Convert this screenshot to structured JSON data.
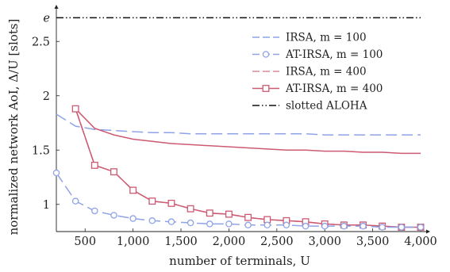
{
  "chart_data": {
    "type": "line",
    "xlabel": "number of terminals, U",
    "ylabel": "normalized network AoI, Δ/U [slots]",
    "xlim": [
      200,
      4000
    ],
    "ylim": [
      0.75,
      2.75
    ],
    "x_ticks": [
      500,
      1000,
      1500,
      2000,
      2500,
      3000,
      3500,
      4000
    ],
    "x_tick_labels": [
      "500",
      "1,000",
      "1,500",
      "2,000",
      "2,500",
      "3,000",
      "3,500",
      "4,000"
    ],
    "y_ticks": [
      1,
      1.5,
      2,
      2.5,
      2.718
    ],
    "y_tick_labels": [
      "1",
      "1.5",
      "2",
      "2.5",
      "e"
    ],
    "grid": false,
    "legend_position": "right",
    "series": [
      {
        "name": "IRSA, m = 100",
        "color": "#8fa3e6",
        "style": "dashed",
        "marker": "none",
        "x": [
          200,
          400,
          600,
          800,
          1000,
          1200,
          1400,
          1600,
          1800,
          2000,
          2200,
          2400,
          2600,
          2800,
          3000,
          3200,
          3400,
          3600,
          3800,
          4000
        ],
        "y": [
          1.83,
          1.72,
          1.69,
          1.68,
          1.67,
          1.66,
          1.66,
          1.65,
          1.65,
          1.65,
          1.65,
          1.65,
          1.65,
          1.65,
          1.64,
          1.64,
          1.64,
          1.64,
          1.64,
          1.64
        ]
      },
      {
        "name": "AT-IRSA, m = 100",
        "color": "#8fa3e6",
        "style": "dashed",
        "marker": "circle",
        "x": [
          200,
          400,
          600,
          800,
          1000,
          1200,
          1400,
          1600,
          1800,
          2000,
          2200,
          2400,
          2600,
          2800,
          3000,
          3200,
          3400,
          3600,
          3800,
          4000
        ],
        "y": [
          1.29,
          1.03,
          0.94,
          0.9,
          0.87,
          0.85,
          0.84,
          0.83,
          0.82,
          0.82,
          0.81,
          0.81,
          0.81,
          0.8,
          0.8,
          0.8,
          0.8,
          0.79,
          0.79,
          0.79
        ]
      },
      {
        "name": "IRSA, m = 400",
        "color": "#d98a9a",
        "style": "dashed",
        "marker": "none",
        "x": [
          400,
          600,
          800,
          1000,
          1200,
          1400,
          1600,
          1800,
          2000,
          2200,
          2400,
          2600,
          2800,
          3000,
          3200,
          3400,
          3600,
          3800,
          4000
        ],
        "y": [
          1.88,
          1.36,
          1.3,
          1.13,
          1.03,
          1.01,
          0.96,
          0.92,
          0.91,
          0.88,
          0.86,
          0.85,
          0.84,
          0.82,
          0.81,
          0.81,
          0.8,
          0.79,
          0.79
        ]
      },
      {
        "name": "AT-IRSA, m = 400",
        "color": "#cc5a72",
        "style": "solid",
        "marker": "square",
        "x": [
          400,
          600,
          800,
          1000,
          1200,
          1400,
          1600,
          1800,
          2000,
          2200,
          2400,
          2600,
          2800,
          3000,
          3200,
          3400,
          3600,
          3800,
          4000
        ],
        "y": [
          1.88,
          1.36,
          1.3,
          1.13,
          1.03,
          1.01,
          0.96,
          0.92,
          0.91,
          0.88,
          0.86,
          0.85,
          0.84,
          0.82,
          0.81,
          0.81,
          0.8,
          0.79,
          0.79
        ]
      },
      {
        "name": "",
        "color": "#cc5a72",
        "style": "solid",
        "marker": "none",
        "x": [
          400,
          600,
          800,
          1000,
          1200,
          1400,
          1600,
          1800,
          2000,
          2200,
          2400,
          2600,
          2800,
          3000,
          3200,
          3400,
          3600,
          3800,
          4000
        ],
        "y": [
          1.88,
          1.7,
          1.64,
          1.6,
          1.58,
          1.56,
          1.55,
          1.54,
          1.53,
          1.52,
          1.51,
          1.5,
          1.5,
          1.49,
          1.49,
          1.48,
          1.48,
          1.47,
          1.47
        ]
      },
      {
        "name": "slotted ALOHA",
        "color": "#111111",
        "style": "dashdotdot",
        "marker": "none",
        "x": [
          200,
          4000
        ],
        "y": [
          2.718,
          2.718
        ]
      }
    ],
    "legend": [
      {
        "label": "IRSA, m = 100",
        "series": 0
      },
      {
        "label": "AT-IRSA, m = 100",
        "series": 1
      },
      {
        "label": "IRSA, m = 400",
        "series": 2
      },
      {
        "label": "AT-IRSA, m = 400",
        "series": 3
      },
      {
        "label": "slotted ALOHA",
        "series": 5
      }
    ]
  }
}
